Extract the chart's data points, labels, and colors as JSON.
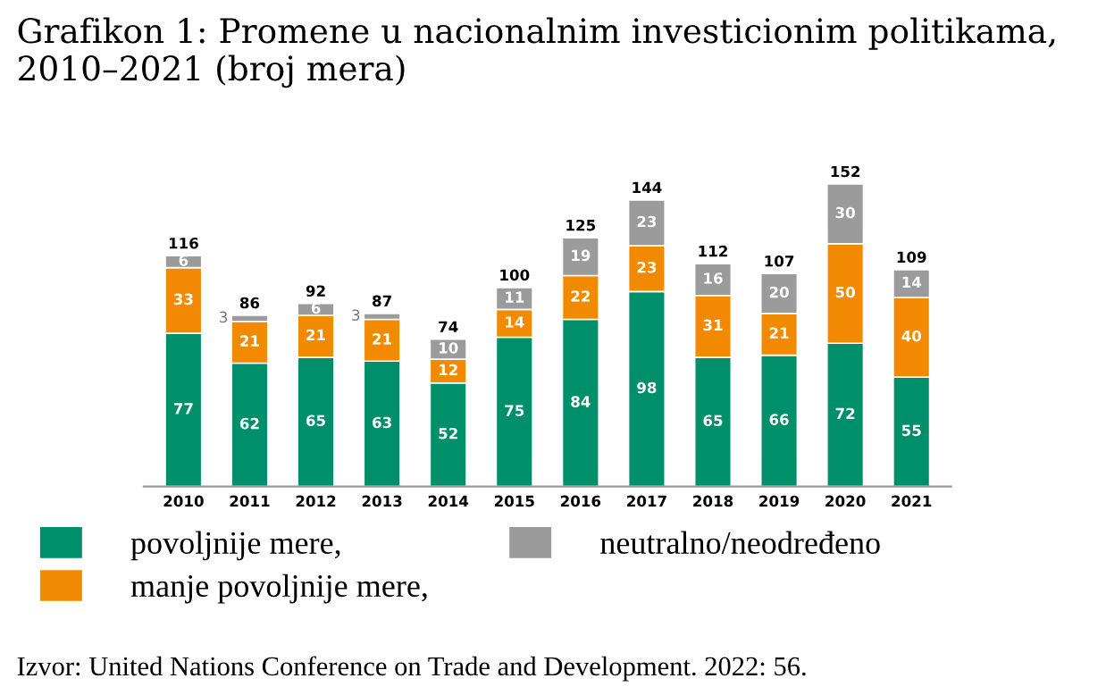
{
  "chart_data": {
    "type": "bar",
    "stacked": true,
    "title": "Grafikon 1: Promene u nacionalnim investicionim politikama, 2010–2021 (broj mera)",
    "categories": [
      "2010",
      "2011",
      "2012",
      "2013",
      "2014",
      "2015",
      "2016",
      "2017",
      "2018",
      "2019",
      "2020",
      "2021"
    ],
    "series": [
      {
        "name": "povoljnije mere,",
        "color": "#008f6b",
        "values": [
          77,
          62,
          65,
          63,
          52,
          75,
          84,
          98,
          65,
          66,
          72,
          55
        ]
      },
      {
        "name": "manje povoljnije mere,",
        "color": "#f28a00",
        "values": [
          33,
          21,
          21,
          21,
          12,
          14,
          22,
          23,
          31,
          21,
          50,
          40
        ]
      },
      {
        "name": "neutralno/neodređeno",
        "color": "#9b9b9b",
        "values": [
          6,
          3,
          6,
          3,
          10,
          11,
          19,
          23,
          16,
          20,
          30,
          14
        ]
      }
    ],
    "data_labels": true,
    "totals": [
      "116",
      "86",
      "92",
      "87",
      "74",
      "100",
      "125",
      "144",
      "112",
      "107",
      "152",
      "109"
    ],
    "legend": "bottom",
    "annotations": [
      "Izvor: United Nations Conference on Trade and Development. 2022: 56."
    ]
  }
}
